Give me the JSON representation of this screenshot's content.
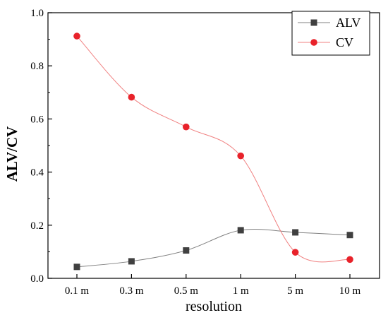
{
  "chart_data": {
    "type": "line",
    "title": "",
    "xlabel": "resolution",
    "ylabel": "ALV/CV",
    "categories": [
      "0.1 m",
      "0.3 m",
      "0.5 m",
      "1 m",
      "5 m",
      "10 m"
    ],
    "ylim": [
      0,
      1.0
    ],
    "yticks": [
      "0.0",
      "0.2",
      "0.4",
      "0.6",
      "0.8",
      "1.0"
    ],
    "grid": false,
    "legend_position": "top-right",
    "series": [
      {
        "name": "ALV",
        "marker": "square",
        "marker_color": "#404040",
        "line_color": "#808080",
        "values": [
          0.043,
          0.064,
          0.105,
          0.181,
          0.173,
          0.163
        ]
      },
      {
        "name": "CV",
        "marker": "circle",
        "marker_color": "#e8222a",
        "line_color": "#f08080",
        "values": [
          0.912,
          0.682,
          0.57,
          0.461,
          0.098,
          0.071
        ]
      }
    ]
  }
}
